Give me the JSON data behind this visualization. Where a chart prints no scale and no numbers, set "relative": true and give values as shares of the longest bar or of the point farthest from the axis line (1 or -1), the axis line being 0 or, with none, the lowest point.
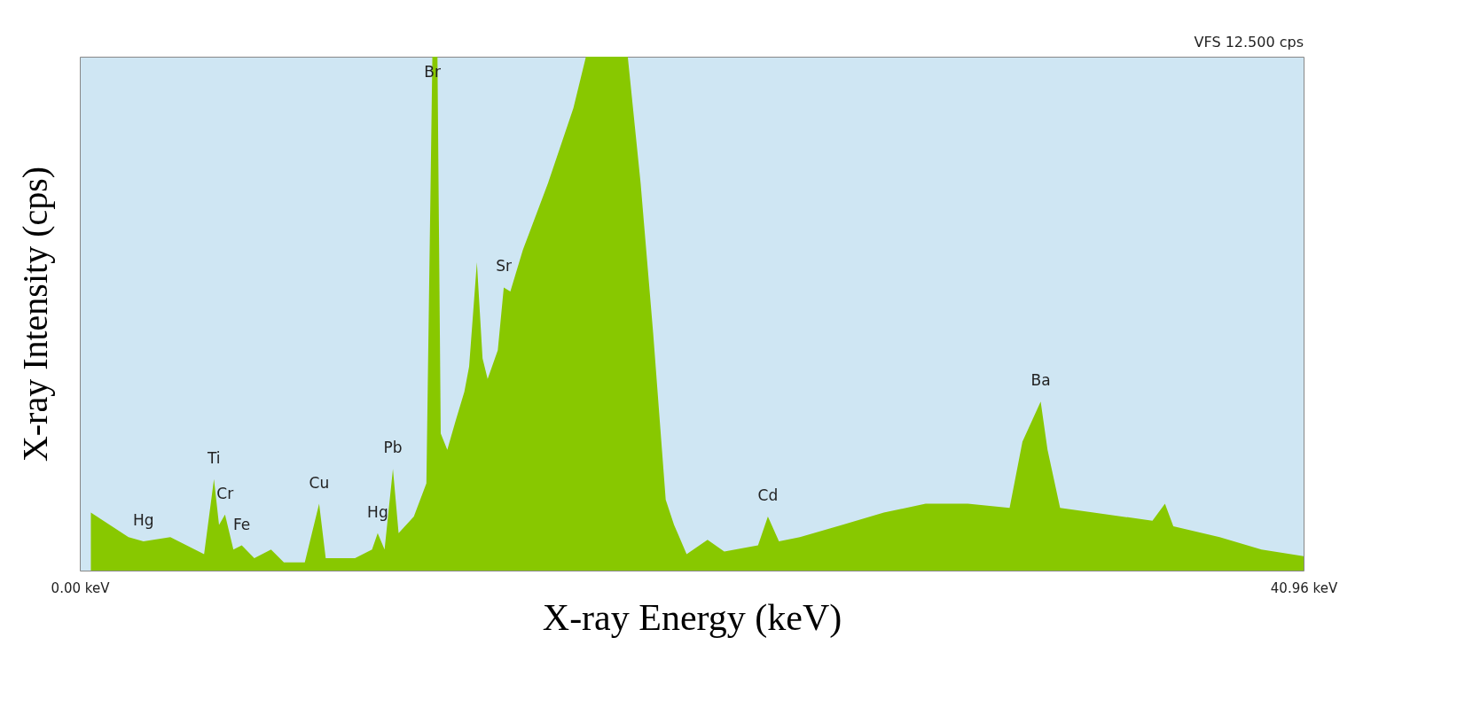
{
  "chart_data": {
    "type": "area",
    "relative": true,
    "xlabel": "X-ray Energy (keV)",
    "ylabel": "X-ray Intensity (cps)",
    "xlim": [
      0,
      40.96
    ],
    "xticks": [
      {
        "value": 0,
        "label": "0.00 keV"
      },
      {
        "value": 40.96,
        "label": "40.96 keV"
      }
    ],
    "grid": false,
    "series": [
      {
        "color": "#88c800",
        "x": [
          0.37,
          1.63,
          2.13,
          3.03,
          4.16,
          4.49,
          4.66,
          4.86,
          5.14,
          5.42,
          5.84,
          6.4,
          6.83,
          7.53,
          8.01,
          8.23,
          9.21,
          9.78,
          9.97,
          10.2,
          10.48,
          10.67,
          11.18,
          11.6,
          11.8,
          11.97,
          12.08,
          12.3,
          12.58,
          12.87,
          13.03,
          13.29,
          13.48,
          13.65,
          13.99,
          14.19,
          14.41,
          14.83,
          15.67,
          16.52,
          16.94,
          18.34,
          18.77,
          19.19,
          19.61,
          19.89,
          20.31,
          21.01,
          21.57,
          22.7,
          23.03,
          23.4,
          24.1,
          25.51,
          26.91,
          28.31,
          29.72,
          31.12,
          31.55,
          32.16,
          32.39,
          32.81,
          33.93,
          35.9,
          36.32,
          36.6,
          38.15,
          39.55,
          40.96
        ],
        "values": [
          0.113,
          0.065,
          0.057,
          0.065,
          0.032,
          0.178,
          0.089,
          0.109,
          0.041,
          0.049,
          0.024,
          0.041,
          0.016,
          0.016,
          0.13,
          0.024,
          0.024,
          0.041,
          0.073,
          0.041,
          0.198,
          0.073,
          0.105,
          0.17,
          1.0,
          1.0,
          0.267,
          0.235,
          0.292,
          0.348,
          0.397,
          0.6,
          0.413,
          0.373,
          0.429,
          0.551,
          0.543,
          0.624,
          0.754,
          0.9,
          1.0,
          1.0,
          0.754,
          0.462,
          0.138,
          0.089,
          0.032,
          0.06,
          0.037,
          0.049,
          0.105,
          0.057,
          0.065,
          0.089,
          0.113,
          0.13,
          0.13,
          0.122,
          0.251,
          0.329,
          0.235,
          0.122,
          0.113,
          0.097,
          0.13,
          0.086,
          0.065,
          0.041,
          0.028
        ]
      }
    ],
    "annotations": [
      "VFS     12.500 cps",
      {
        "text": "Hg",
        "x": 2.13,
        "y": 0.057
      },
      {
        "text": "Ti",
        "x": 4.49,
        "y": 0.178
      },
      {
        "text": "Cr",
        "x": 4.86,
        "y": 0.109
      },
      {
        "text": "Fe",
        "x": 5.42,
        "y": 0.049
      },
      {
        "text": "Cu",
        "x": 8.01,
        "y": 0.13
      },
      {
        "text": "Hg",
        "x": 9.97,
        "y": 0.073
      },
      {
        "text": "Pb",
        "x": 10.48,
        "y": 0.198
      },
      {
        "text": "Br",
        "x": 11.8,
        "y": 0.93
      },
      {
        "text": "Sr",
        "x": 14.19,
        "y": 0.551
      },
      {
        "text": "Cd",
        "x": 23.03,
        "y": 0.105
      },
      {
        "text": "Ba",
        "x": 32.16,
        "y": 0.329
      }
    ]
  }
}
